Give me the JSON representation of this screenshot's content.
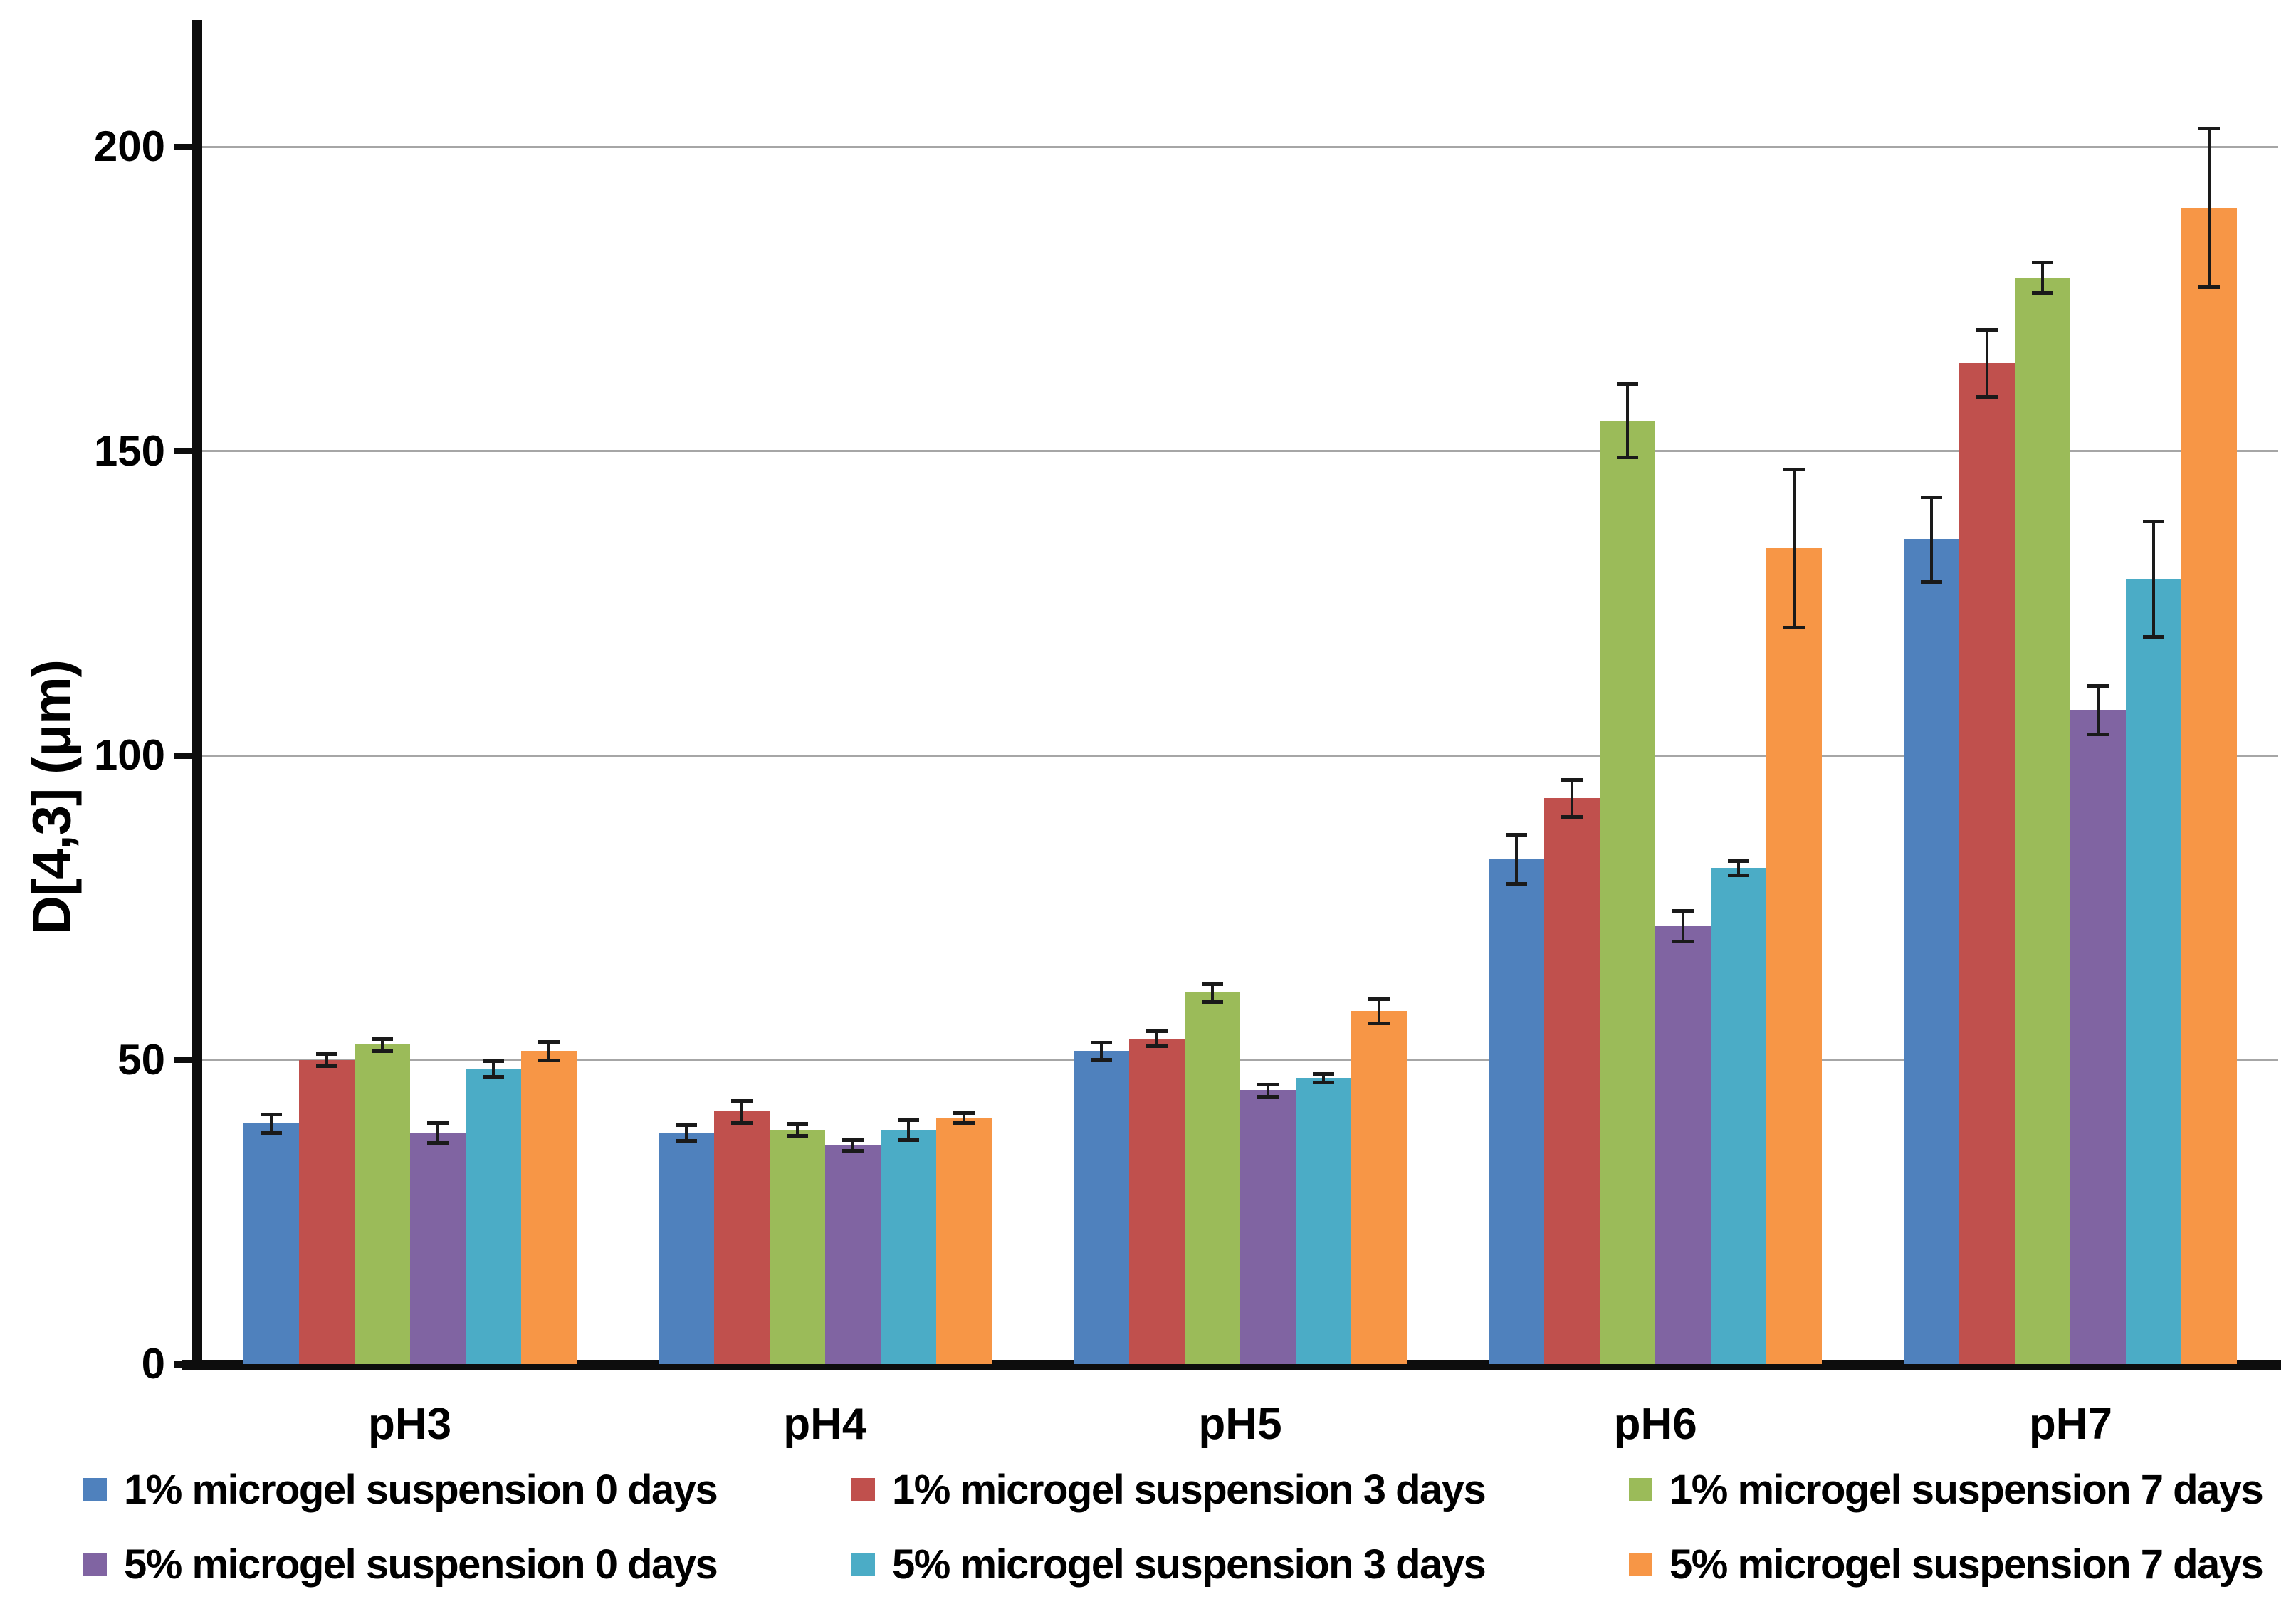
{
  "y_axis": {
    "title": "D[4,3] (μm)",
    "ticks": [
      0,
      50,
      100,
      150,
      200
    ],
    "max": 220.6
  },
  "chart_data": {
    "type": "bar",
    "title": "",
    "xlabel": "",
    "ylabel": "D[4,3] (μm)",
    "ylim": [
      0,
      220
    ],
    "grid": true,
    "gridline_values": [
      50,
      100,
      150,
      200
    ],
    "legend_position": "bottom",
    "categories": [
      "pH3",
      "pH4",
      "pH5",
      "pH6",
      "pH7"
    ],
    "series": [
      {
        "name": "1% microgel suspension 0 days",
        "color": "#4F81BD",
        "values": [
          39.5,
          38,
          51.5,
          83,
          135.5
        ],
        "errors": [
          1.5,
          1.3,
          1.4,
          4,
          7
        ]
      },
      {
        "name": "1% microgel suspension 3 days",
        "color": "#C0504D",
        "values": [
          50,
          41.5,
          53.5,
          93,
          164.5
        ],
        "errors": [
          1,
          1.8,
          1.2,
          3,
          5.5
        ]
      },
      {
        "name": "1% microgel suspension 7 days",
        "color": "#9BBB59",
        "values": [
          52.5,
          38.5,
          61,
          155,
          178.5
        ],
        "errors": [
          1,
          1,
          1.5,
          6,
          2.5
        ]
      },
      {
        "name": "5% microgel suspension 0 days",
        "color": "#8064A2",
        "values": [
          38,
          36,
          45,
          72,
          107.5
        ],
        "errors": [
          1.6,
          0.9,
          1,
          2.5,
          4
        ]
      },
      {
        "name": "5% microgel suspension 3 days",
        "color": "#4BACC6",
        "values": [
          48.5,
          38.5,
          47,
          81.5,
          129
        ],
        "errors": [
          1.3,
          1.6,
          0.7,
          1.2,
          9.5
        ]
      },
      {
        "name": "5% microgel suspension 7 days",
        "color": "#F79646",
        "values": [
          51.5,
          40.5,
          58,
          134,
          190
        ],
        "errors": [
          1.5,
          0.8,
          2,
          13,
          13
        ]
      }
    ]
  },
  "legend": {
    "rows": [
      [
        "1% microgel suspension 0 days",
        "1% microgel suspension 3 days",
        "1% microgel suspension 7 days"
      ],
      [
        "5% microgel suspension 0 days",
        "5% microgel suspension 3 days",
        "5% microgel suspension 7 days"
      ]
    ]
  },
  "colors": {
    "axis": "#0d0d0d",
    "gridline": "#a6a6a6",
    "error_bar": "#1a1a1a",
    "background": "#ffffff"
  }
}
